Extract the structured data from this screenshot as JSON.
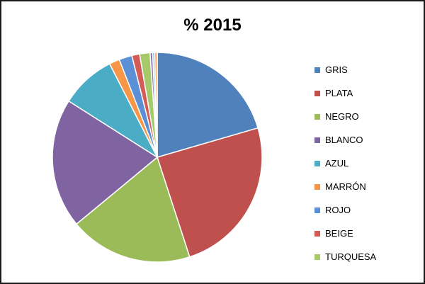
{
  "chart_data": {
    "type": "pie",
    "title": "% 2015",
    "legend_position": "right",
    "series": [
      {
        "name": "GRIS",
        "value": 20.5,
        "color": "#4F81BD"
      },
      {
        "name": "PLATA",
        "value": 24.5,
        "color": "#C0504D"
      },
      {
        "name": "NEGRO",
        "value": 19.0,
        "color": "#9BBB59"
      },
      {
        "name": "BLANCO",
        "value": 20.0,
        "color": "#8064A2"
      },
      {
        "name": "AZUL",
        "value": 8.5,
        "color": "#4BACC6"
      },
      {
        "name": "MARRÓN",
        "value": 1.6,
        "color": "#F79646"
      },
      {
        "name": "ROJO",
        "value": 2.0,
        "color": "#5B8FD6"
      },
      {
        "name": "BEIGE",
        "value": 1.2,
        "color": "#D55B58"
      },
      {
        "name": "TURQUESA",
        "value": 1.6,
        "color": "#A6C96A"
      },
      {
        "value": 0.4,
        "color": "#9278B6"
      },
      {
        "value": 0.3,
        "color": "#5EBBD4"
      },
      {
        "value": 0.4,
        "color": "#F9AD6E"
      }
    ]
  }
}
